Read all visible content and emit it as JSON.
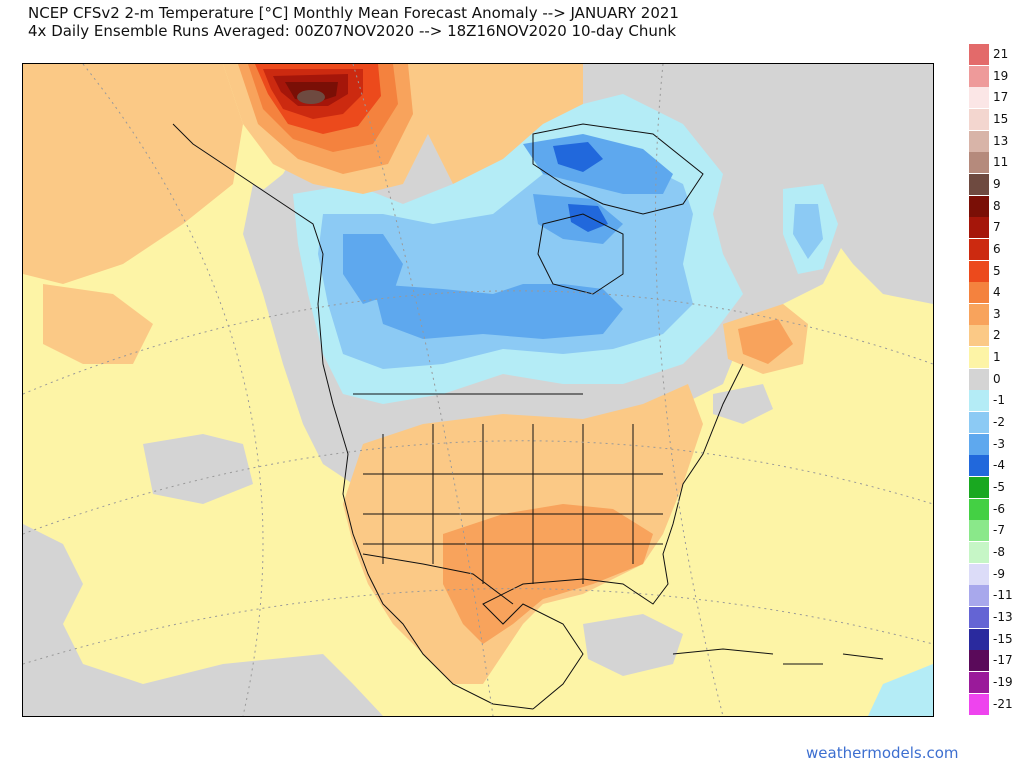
{
  "header": {
    "title_line1": "NCEP CFSv2 2-m Temperature [°C] Monthly Mean Forecast Anomaly --> JANUARY 2021",
    "title_line2": "4x Daily Ensemble Runs Averaged: 00Z07NOV2020 --> 18Z16NOV2020 10-day Chunk"
  },
  "legend": {
    "entries": [
      {
        "label": "21",
        "color": "#e36a6a"
      },
      {
        "label": "19",
        "color": "#ee9a9a"
      },
      {
        "label": "17",
        "color": "#fbe6e6"
      },
      {
        "label": "15",
        "color": "#f3d6cf"
      },
      {
        "label": "13",
        "color": "#d8b4a8"
      },
      {
        "label": "11",
        "color": "#b58a7c"
      },
      {
        "label": "9",
        "color": "#6e4a40"
      },
      {
        "label": "8",
        "color": "#7a0f06"
      },
      {
        "label": "7",
        "color": "#a5160a"
      },
      {
        "label": "6",
        "color": "#cc2a10"
      },
      {
        "label": "5",
        "color": "#ec4a1c"
      },
      {
        "label": "4",
        "color": "#f4823e"
      },
      {
        "label": "3",
        "color": "#f8a35c"
      },
      {
        "label": "2",
        "color": "#fbc986"
      },
      {
        "label": "1",
        "color": "#fdf4a6"
      },
      {
        "label": "0",
        "color": "#d4d4d4"
      },
      {
        "label": "-1",
        "color": "#b4ecf6"
      },
      {
        "label": "-2",
        "color": "#8ccaf4"
      },
      {
        "label": "-3",
        "color": "#5ea8ee"
      },
      {
        "label": "-4",
        "color": "#2168dc"
      },
      {
        "label": "-5",
        "color": "#19a820"
      },
      {
        "label": "-6",
        "color": "#44d044"
      },
      {
        "label": "-7",
        "color": "#8ae88a"
      },
      {
        "label": "-8",
        "color": "#c6f6c6"
      },
      {
        "label": "-9",
        "color": "#dcdcf8"
      },
      {
        "label": "-11",
        "color": "#a8a8ec"
      },
      {
        "label": "-13",
        "color": "#6464d4"
      },
      {
        "label": "-15",
        "color": "#2a2a9e"
      },
      {
        "label": "-17",
        "color": "#5a0a5a"
      },
      {
        "label": "-19",
        "color": "#9a1a9a"
      },
      {
        "label": "-21",
        "color": "#ee44ee"
      }
    ]
  },
  "colors": {
    "neutral": "#d4d4d4",
    "warm1": "#fdf4a6",
    "warm2": "#fbc986",
    "warm3": "#f8a35c",
    "warm4": "#f4823e",
    "warm5": "#ec4a1c",
    "warm6": "#cc2a10",
    "warm7": "#a5160a",
    "warm8": "#7a0f06",
    "warm9": "#6e4a40",
    "cool1": "#b4ecf6",
    "cool2": "#8ccaf4",
    "cool3": "#5ea8ee",
    "cool4": "#2168dc"
  },
  "footer": {
    "credit": "weathermodels.com"
  }
}
